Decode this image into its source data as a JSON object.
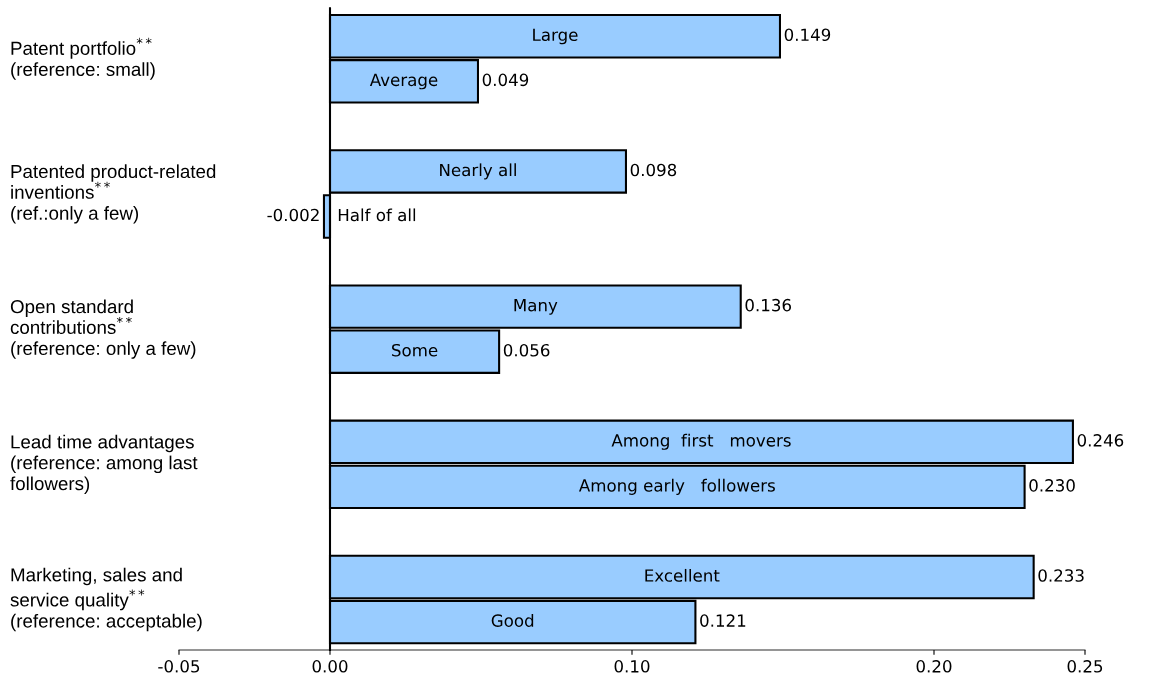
{
  "chart_data": {
    "type": "bar",
    "orientation": "horizontal",
    "categories": [
      "Large",
      "Average",
      "Nearly all",
      "Half of all",
      "Many",
      "Some",
      "Among  first   movers",
      "Among early   followers",
      "Excellent",
      "Good"
    ],
    "values": [
      0.149,
      0.049,
      0.098,
      -0.002,
      0.136,
      0.056,
      0.246,
      0.23,
      0.233,
      0.121
    ],
    "value_labels": [
      "0.149",
      "0.049",
      "0.098",
      "-0.002",
      "0.136",
      "0.056",
      "0.246",
      "0.230",
      "0.233",
      "0.121"
    ],
    "color": "#99ccff",
    "xlim": [
      -0.05,
      0.25
    ],
    "xticks": [
      -0.05,
      {
        "value": 0,
        "label": "0.00"
      },
      {
        "value": 0.1,
        "label": "0.10"
      },
      {
        "value": 0.2,
        "label": "0.20"
      },
      0.25
    ],
    "tick_labels": "x",
    "grid": false,
    "annotations": [
      "Patent portfolio$^{**}$\n(reference: small)",
      "Patented product-related\ninventions$^{**}$\n(ref.:only a few)",
      "Open standard\ncontributions$^{**}$\n(reference: only a few)",
      "Lead time advantages\n(reference: among last\nfollowers)",
      "Marketing, sales and\nservice quality$^{**}$\n(reference: acceptable)"
    ]
  }
}
